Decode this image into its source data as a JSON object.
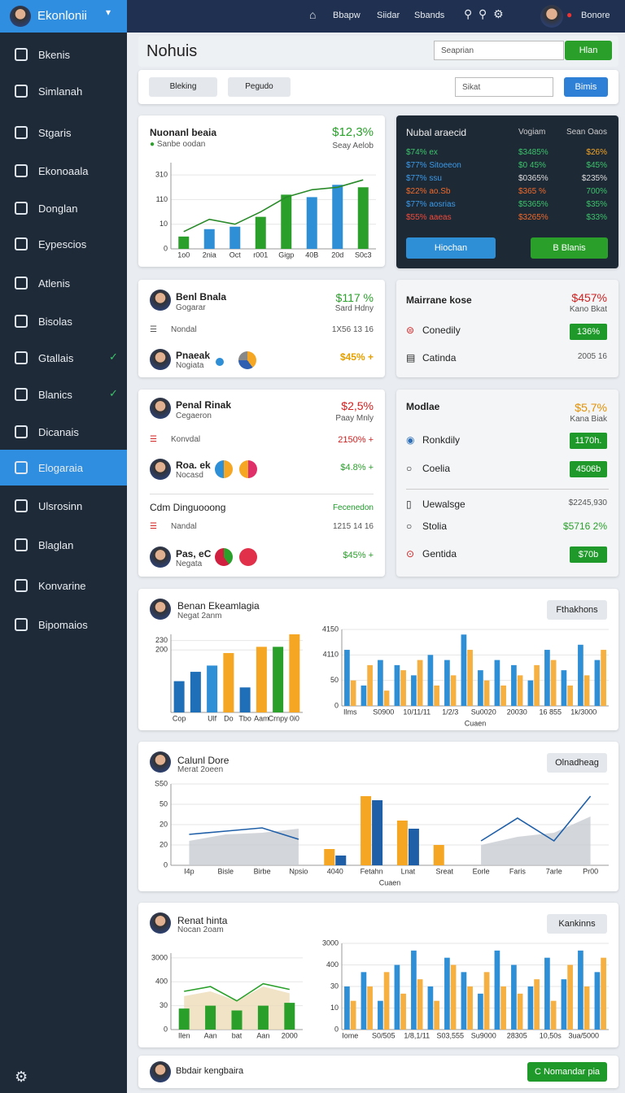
{
  "sidebar": {
    "brand": "Ekonlonii",
    "items": [
      {
        "label": "Bkenis"
      },
      {
        "label": "Simlanah"
      },
      {
        "label": "Stgaris"
      },
      {
        "label": "Ekonoaala"
      },
      {
        "label": "Donglan"
      },
      {
        "label": "Eypescios"
      },
      {
        "label": "Atlenis"
      },
      {
        "label": "Bisolas"
      },
      {
        "label": "Gtallais",
        "checked": true
      },
      {
        "label": "Blanics",
        "checked": true
      },
      {
        "label": "Dicanais"
      },
      {
        "label": "Elogaraia",
        "active": true
      },
      {
        "label": "Ulsrosinn"
      },
      {
        "label": "Blaglan"
      },
      {
        "label": "Konvarine"
      },
      {
        "label": "Bipomaios"
      }
    ]
  },
  "topbar": {
    "links": [
      "Bbapw",
      "Siidar",
      "Sbands"
    ],
    "user": "Bonore"
  },
  "header": {
    "title": "Nohuis",
    "search": "Seaprian",
    "button": "Hlan"
  },
  "filters": {
    "chips": [
      "Bleking",
      "Pegudo"
    ],
    "search": "Sikat",
    "button": "Bimis"
  },
  "card1": {
    "title": "Nuonanl beaia",
    "legend": "Sanbe oodan",
    "value": "$12,3%",
    "sub": "Seay Aelob"
  },
  "dark_card": {
    "title": "Nubal araecid",
    "columns": [
      "Vogiam",
      "Sean Oaos"
    ],
    "rows": [
      {
        "cells": [
          "$74% ex",
          "$3485%",
          "$26%"
        ],
        "colors": [
          "#3cc46a",
          "#3cc46a",
          "#f5a623"
        ]
      },
      {
        "cells": [
          "$77% Sitoeeon",
          "$0 45%",
          "$45%"
        ],
        "colors": [
          "#3b9be8",
          "#3cc46a",
          "#3cc46a"
        ]
      },
      {
        "cells": [
          "$77% ssu",
          "$0365%",
          "$235%"
        ],
        "colors": [
          "#3b9be8",
          "#dddddd",
          "#dddddd"
        ]
      },
      {
        "cells": [
          "$22% ao.Sb",
          "$365 %",
          "700%"
        ],
        "colors": [
          "#f06a2a",
          "#f06a2a",
          "#3cc46a"
        ]
      },
      {
        "cells": [
          "$77% aosrias",
          "$5365%",
          "$35%"
        ],
        "colors": [
          "#3b9be8",
          "#3cc46a",
          "#3cc46a"
        ]
      },
      {
        "cells": [
          "$55% aaeas",
          "$3265%",
          "$33%"
        ],
        "colors": [
          "#f04a3a",
          "#f06a2a",
          "#3cc46a"
        ]
      }
    ],
    "buttons": [
      "Hiochan",
      "B Blanis"
    ]
  },
  "card3": {
    "name": "Benl Bnala",
    "role": "Gogarar",
    "value": "$117 %",
    "sub": "Sard Hdny",
    "row_label": "Nondal",
    "row_value": "1X56 13 16",
    "person": "Pnaeak",
    "person_sub": "Nogiata",
    "person_value": "$45% +"
  },
  "card4": {
    "title": "Mairrane kose",
    "value": "$457%",
    "sub": "Kano Bkat",
    "rows": [
      {
        "label": "Conedily",
        "value": "136%"
      },
      {
        "label": "Catinda",
        "value": "2005 16"
      }
    ]
  },
  "card5": {
    "name": "Penal Rinak",
    "role": "Cegaeron",
    "value": "$2,5%",
    "sub": "Paay Mnly",
    "row_label": "Konvdal",
    "row_value": "2150% +",
    "person": "Roa. ek",
    "person_sub": "Nocasd",
    "person_value": "$4.8% +",
    "section": "Cdm Dinguooong",
    "section_link": "Fecenedon",
    "row2_label": "Nandal",
    "row2_value": "1215 14 16",
    "person2": "Pas, eC",
    "person2_sub": "Negata",
    "person2_value": "$45% +"
  },
  "card6": {
    "title": "Modlae",
    "value": "$5,7%",
    "sub": "Kana Biak",
    "rows": [
      {
        "label": "Ronkdily",
        "value": "1170h."
      },
      {
        "label": "Coelia",
        "value": "4506b"
      },
      {
        "label": "Uewalsge",
        "value": "$2245,930"
      },
      {
        "label": "Stolia",
        "value": "$5716 2%"
      },
      {
        "label": "Gentida",
        "value": "$70b"
      }
    ]
  },
  "card7": {
    "title": "Benan Ekeamlagia",
    "sub": "Negat 2anm",
    "button": "Fthakhons"
  },
  "card8": {
    "title": "Calunl Dore",
    "sub": "Merat 2oeen",
    "button": "Olnadheag"
  },
  "card9": {
    "title": "Renat hinta",
    "sub": "Nocan 2oam",
    "button": "Kankinns"
  },
  "footer": {
    "text": "Bbdair kengbaira",
    "button": "C Nomandar pia"
  },
  "chart_data": [
    {
      "type": "bar",
      "categories": [
        "1o0",
        "2nia",
        "Oct",
        "r001",
        "Gigp",
        "40B",
        "20d",
        "S0c3"
      ],
      "ylim": [
        0,
        35
      ],
      "yticks": [
        0,
        10,
        {
          "value": 20,
          "label": "110"
        },
        {
          "value": 30,
          "label": "310"
        }
      ],
      "series": [
        {
          "name": "Sanbe oodan",
          "color": "#2aa02b",
          "colors": [
            "#2aa02b",
            "#2e8fd6",
            "#2e8fd6",
            "#2aa02b",
            "#2aa02b",
            "#2e8fd6",
            "#2e8fd6",
            "#2aa02b"
          ],
          "values": [
            5,
            8,
            9,
            13,
            22,
            21,
            26,
            25
          ]
        },
        {
          "kind": "line",
          "color": "#2a8a2a",
          "values": [
            7,
            12,
            10,
            15,
            21,
            24,
            25,
            28
          ]
        }
      ]
    },
    {
      "type": "bar",
      "categories": [
        "Cop",
        null,
        "Ulf",
        "Do",
        "Tbo",
        "Aam",
        "Crnpy",
        "0i0"
      ],
      "ylim": [
        0,
        250
      ],
      "yticks": [
        200,
        230
      ],
      "series": [
        {
          "color": "#1f6fb8",
          "colors": [
            "#1f6fb8",
            "#1f6fb8",
            "#2e8fd6",
            "#f5a623",
            "#1f6fb8",
            "#f5a623",
            "#2aa02b",
            "#f5a623"
          ],
          "values": [
            100,
            130,
            150,
            190,
            80,
            210,
            210,
            250
          ]
        }
      ]
    },
    {
      "type": "bar",
      "xlabel": "Cuaen",
      "categories": [
        "Ilms",
        null,
        "S0900",
        null,
        "10/11/11",
        null,
        "1/2/3",
        null,
        "Su0020",
        null,
        "20030",
        null,
        "16 855",
        null,
        "1k/3000",
        null
      ],
      "ylim": [
        0,
        75
      ],
      "yticks": [
        0,
        {
          "value": 25,
          "label": "50"
        },
        {
          "value": 50,
          "label": "4110"
        },
        {
          "value": 75,
          "label": "4150"
        }
      ],
      "series": [
        {
          "color": "#2e8fd6",
          "values": [
            55,
            20,
            45,
            40,
            30,
            50,
            45,
            70,
            35,
            45,
            40,
            25,
            55,
            35,
            60,
            45
          ]
        },
        {
          "color": "#f5b041",
          "values": [
            25,
            40,
            15,
            35,
            45,
            20,
            30,
            55,
            25,
            20,
            30,
            40,
            45,
            20,
            30,
            55
          ]
        }
      ]
    },
    {
      "type": "bar",
      "xlabel": "Cuaen",
      "categories": [
        "I4p",
        "Bisle",
        "Birbe",
        "Npsio",
        "4040",
        "Fetahn",
        "Lnat",
        "Sreat",
        "Eorle",
        "Faris",
        "7arle",
        "Pr00"
      ],
      "ylim": [
        0,
        100
      ],
      "yticks": [
        0,
        {
          "value": 25,
          "label": "20"
        },
        {
          "value": 50,
          "label": "20"
        },
        {
          "value": 75,
          "label": "50"
        },
        {
          "value": 100,
          "label": "S50"
        }
      ],
      "series": [
        {
          "kind": "area",
          "color": "#c8ccd2",
          "values": [
            30,
            38,
            40,
            45,
            null,
            null,
            null,
            null,
            25,
            35,
            40,
            60
          ]
        },
        {
          "color": "#f5a623",
          "values": [
            null,
            null,
            null,
            null,
            20,
            85,
            55,
            25,
            null,
            null,
            null,
            null
          ]
        },
        {
          "color": "#1f5fa8",
          "values": [
            null,
            null,
            null,
            null,
            12,
            80,
            45,
            null,
            null,
            null,
            null,
            null
          ]
        },
        {
          "kind": "line",
          "color": "#1f5fa8",
          "values": [
            38,
            42,
            46,
            32,
            null,
            null,
            null,
            null,
            30,
            58,
            30,
            85
          ]
        }
      ]
    },
    {
      "type": "bar",
      "categories": [
        "Ilen",
        "Aan",
        "bat",
        "Aan",
        "2000"
      ],
      "ylim": [
        0,
        80
      ],
      "yticks": [
        0,
        {
          "value": 25,
          "label": "30"
        },
        {
          "value": 50,
          "label": "400"
        },
        {
          "value": 75,
          "label": "3000"
        }
      ],
      "series": [
        {
          "kind": "area",
          "color": "#ecdcb8",
          "values": [
            35,
            40,
            30,
            45,
            38
          ]
        },
        {
          "color": "#2aa02b",
          "values": [
            22,
            25,
            20,
            25,
            28
          ]
        },
        {
          "kind": "line",
          "color": "#2aa02b",
          "values": [
            40,
            45,
            30,
            48,
            42
          ]
        }
      ]
    },
    {
      "type": "bar",
      "categories": [
        "Iome",
        null,
        "S0/505",
        null,
        "1/8,1/11",
        null,
        "S03,555",
        null,
        "Su9000",
        null,
        "28305",
        null,
        "10,50s",
        null,
        "3ua/5000",
        null
      ],
      "ylim": [
        0,
        60
      ],
      "yticks": [
        0,
        {
          "value": 15,
          "label": "10"
        },
        {
          "value": 30,
          "label": "30"
        },
        {
          "value": 45,
          "label": "400"
        },
        {
          "value": 60,
          "label": "3000"
        }
      ],
      "series": [
        {
          "color": "#2e8fd6",
          "values": [
            30,
            40,
            20,
            45,
            55,
            30,
            50,
            40,
            25,
            55,
            45,
            30,
            50,
            35,
            55,
            40
          ]
        },
        {
          "color": "#f5b041",
          "values": [
            20,
            30,
            40,
            25,
            35,
            20,
            45,
            30,
            40,
            30,
            25,
            35,
            20,
            45,
            30,
            50
          ]
        }
      ]
    }
  ]
}
